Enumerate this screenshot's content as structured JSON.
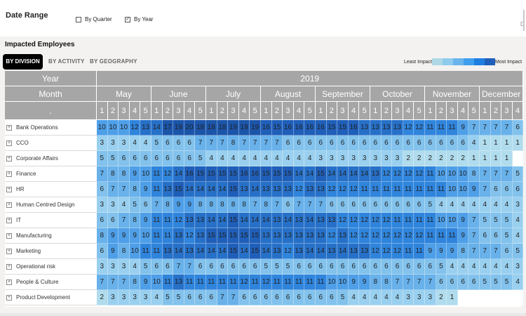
{
  "filters": {
    "title": "Date Range",
    "by_quarter": {
      "label": "By Quarter",
      "checked": false
    },
    "by_year": {
      "label": "By Year",
      "checked": true
    },
    "check_mark": "✓",
    "edge_letter": "D"
  },
  "visual": {
    "title": "Impacted Employees",
    "tabs": [
      "BY DIVISION",
      "BY ACTIVITY",
      "BY GEOGRAPHY"
    ],
    "active_tab": "BY DIVISION",
    "legend": {
      "least": "Least Impact",
      "most": "Most Impact",
      "colors": [
        "#add8e6",
        "#8ecbed",
        "#6ab4ec",
        "#3f9fee",
        "#1f7fe0",
        "#1f5fb9"
      ]
    },
    "expand_glyph": "+"
  },
  "matrix": {
    "year_label": "Year",
    "month_label": "Month",
    "week_label": ".",
    "year": "2019",
    "months": [
      {
        "name": "May",
        "weeks": 5
      },
      {
        "name": "June",
        "weeks": 5
      },
      {
        "name": "July",
        "weeks": 5
      },
      {
        "name": "August",
        "weeks": 5
      },
      {
        "name": "September",
        "weeks": 5
      },
      {
        "name": "October",
        "weeks": 5
      },
      {
        "name": "November",
        "weeks": 5
      },
      {
        "name": "December",
        "weeks": 4
      }
    ],
    "weeks": [
      "1",
      "2",
      "3",
      "4",
      "5",
      "1",
      "2",
      "3",
      "4",
      "5",
      "1",
      "2",
      "3",
      "4",
      "5",
      "1",
      "2",
      "3",
      "4",
      "5",
      "1",
      "2",
      "3",
      "4",
      "5",
      "1",
      "2",
      "3",
      "4",
      "5",
      "1",
      "2",
      "3",
      "4",
      "5",
      "1",
      "2",
      "3",
      "4"
    ],
    "rows": [
      {
        "name": "Bank Operations",
        "values": [
          10,
          10,
          10,
          12,
          13,
          14,
          17,
          19,
          20,
          18,
          18,
          18,
          19,
          19,
          19,
          16,
          15,
          16,
          16,
          16,
          16,
          15,
          15,
          16,
          13,
          13,
          13,
          13,
          12,
          12,
          11,
          11,
          11,
          9,
          7,
          7,
          7,
          7,
          6
        ]
      },
      {
        "name": "CCO",
        "values": [
          3,
          3,
          3,
          4,
          4,
          5,
          6,
          6,
          6,
          7,
          7,
          7,
          8,
          7,
          7,
          7,
          7,
          6,
          6,
          6,
          6,
          6,
          6,
          6,
          6,
          6,
          6,
          6,
          6,
          6,
          6,
          6,
          6,
          6,
          4,
          1,
          1,
          1,
          1
        ]
      },
      {
        "name": "Corporate Affairs",
        "values": [
          5,
          5,
          6,
          6,
          6,
          6,
          6,
          6,
          6,
          5,
          4,
          4,
          4,
          4,
          4,
          4,
          4,
          4,
          4,
          4,
          3,
          3,
          3,
          3,
          3,
          3,
          3,
          3,
          2,
          2,
          2,
          2,
          2,
          2,
          1,
          1,
          1,
          1,
          null
        ]
      },
      {
        "name": "Finance",
        "values": [
          7,
          8,
          8,
          9,
          10,
          11,
          12,
          14,
          16,
          15,
          15,
          15,
          15,
          16,
          16,
          15,
          15,
          15,
          14,
          14,
          15,
          14,
          14,
          14,
          14,
          13,
          12,
          12,
          12,
          12,
          11,
          10,
          10,
          10,
          8,
          7,
          7,
          7,
          5
        ]
      },
      {
        "name": "HR",
        "values": [
          6,
          7,
          7,
          8,
          9,
          11,
          13,
          15,
          14,
          14,
          14,
          14,
          15,
          13,
          14,
          13,
          13,
          13,
          12,
          13,
          13,
          12,
          12,
          12,
          11,
          11,
          11,
          11,
          11,
          11,
          11,
          11,
          10,
          10,
          9,
          7,
          6,
          6,
          6
        ]
      },
      {
        "name": "Human Centred Design",
        "values": [
          3,
          3,
          4,
          5,
          6,
          7,
          8,
          9,
          9,
          8,
          8,
          8,
          8,
          8,
          7,
          8,
          7,
          6,
          7,
          7,
          7,
          6,
          6,
          6,
          6,
          6,
          6,
          6,
          6,
          6,
          5,
          4,
          4,
          4,
          4,
          4,
          4,
          4,
          3
        ]
      },
      {
        "name": "IT",
        "values": [
          6,
          6,
          7,
          8,
          9,
          11,
          11,
          12,
          13,
          13,
          14,
          14,
          15,
          14,
          14,
          14,
          13,
          14,
          13,
          14,
          13,
          13,
          12,
          12,
          12,
          12,
          12,
          11,
          11,
          11,
          11,
          10,
          10,
          9,
          7,
          5,
          5,
          5,
          4
        ]
      },
      {
        "name": "Manufacturing",
        "values": [
          8,
          9,
          9,
          9,
          10,
          11,
          11,
          13,
          12,
          13,
          15,
          15,
          15,
          15,
          15,
          13,
          13,
          13,
          13,
          13,
          13,
          12,
          13,
          12,
          12,
          12,
          12,
          12,
          12,
          12,
          11,
          11,
          11,
          9,
          7,
          6,
          6,
          5,
          4
        ]
      },
      {
        "name": "Marketing",
        "values": [
          6,
          9,
          8,
          10,
          11,
          11,
          13,
          14,
          13,
          14,
          14,
          14,
          15,
          14,
          15,
          14,
          13,
          12,
          13,
          14,
          14,
          13,
          14,
          13,
          13,
          12,
          12,
          12,
          11,
          11,
          9,
          9,
          9,
          8,
          7,
          7,
          7,
          6,
          5
        ]
      },
      {
        "name": "Operational risk",
        "values": [
          3,
          3,
          3,
          4,
          5,
          6,
          6,
          7,
          7,
          6,
          6,
          6,
          6,
          6,
          6,
          5,
          5,
          5,
          6,
          6,
          6,
          6,
          6,
          6,
          6,
          6,
          6,
          6,
          6,
          6,
          6,
          5,
          4,
          4,
          4,
          4,
          4,
          4,
          3
        ]
      },
      {
        "name": "People & Culture",
        "values": [
          7,
          7,
          7,
          8,
          9,
          10,
          11,
          13,
          11,
          11,
          11,
          11,
          11,
          12,
          11,
          12,
          11,
          11,
          11,
          11,
          11,
          10,
          10,
          9,
          9,
          8,
          8,
          7,
          7,
          7,
          7,
          6,
          6,
          6,
          6,
          5,
          5,
          5,
          4
        ]
      },
      {
        "name": "Product Development",
        "values": [
          2,
          3,
          3,
          3,
          3,
          4,
          5,
          5,
          6,
          6,
          6,
          7,
          7,
          6,
          6,
          6,
          6,
          6,
          6,
          6,
          6,
          6,
          5,
          4,
          4,
          4,
          4,
          4,
          3,
          3,
          3,
          2,
          1,
          null,
          null,
          null,
          null,
          null,
          null
        ]
      }
    ]
  }
}
